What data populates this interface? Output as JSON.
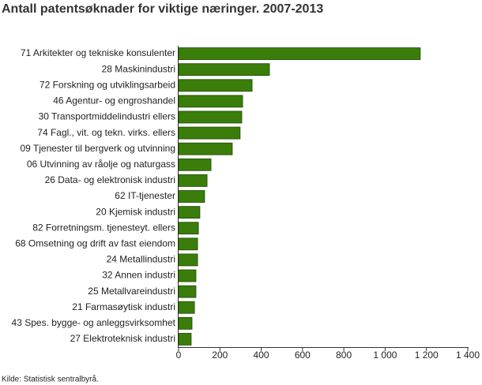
{
  "chart_data": {
    "type": "hbar",
    "title": "Antall patentsøknader for viktige næringer. 2007-2013",
    "source": "Kilde: Statistisk sentralbyrå.",
    "categories": [
      "71 Arkitekter og tekniske konsulenter",
      "28 Maskinindustri",
      "72 Forskning og utviklingsarbeid",
      "46 Agentur- og engroshandel",
      "30 Transportmiddelindustri ellers",
      "74 Fagl., vit. og tekn. virks. ellers",
      "09 Tjenester til bergverk og utvinning",
      "06 Utvinning av råolje og naturgass",
      "26 Data- og elektronisk industri",
      "62 IT-tjenester",
      "20 Kjemisk industri",
      "82 Forretningsm. tjenesteyt. ellers",
      "68 Omsetning og drift av fast eiendom",
      "24 Metallindustri",
      "32 Annen industri",
      "25 Metallvareindustri",
      "21 Farmasøytisk industri",
      "43 Spes. bygge- og anleggsvirksomhet",
      "27 Elektroteknisk industri"
    ],
    "values": [
      1170,
      440,
      356,
      310,
      306,
      298,
      260,
      157,
      138,
      126,
      103,
      96,
      92,
      92,
      84,
      84,
      77,
      65,
      61
    ],
    "color": "#3a7d0a",
    "xlim": [
      0,
      1400
    ],
    "xticks": [
      0,
      200,
      400,
      600,
      800,
      {
        "value": 1000,
        "label": "1 000"
      },
      {
        "value": 1200,
        "label": "1 200"
      },
      {
        "value": 1400,
        "label": "1 400"
      }
    ]
  }
}
